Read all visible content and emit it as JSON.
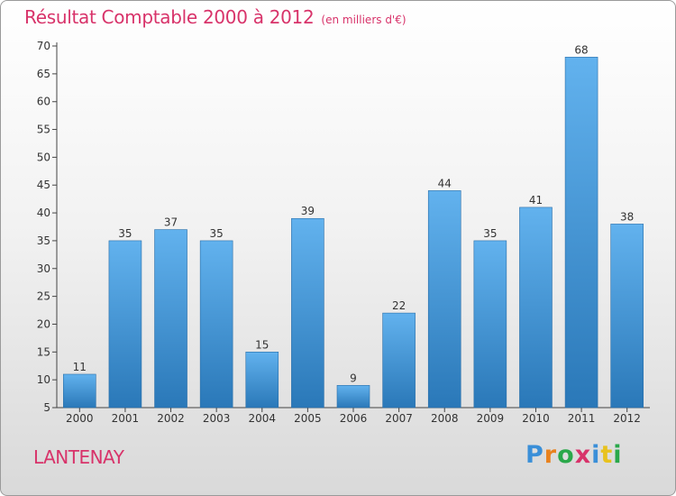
{
  "header": {
    "title": "Résultat Comptable 2000 à 2012",
    "subtitle": "(en milliers d'€)"
  },
  "footer": {
    "commune": "LANTENAY",
    "brand": "Proxiti",
    "brand_colors": [
      "#3a8fd8",
      "#e8821e",
      "#2aa84a",
      "#d8336a",
      "#3a8fd8",
      "#e8c21e",
      "#2aa84a"
    ]
  },
  "colors": {
    "title": "#d8336a",
    "bar_top": "#62b2ee",
    "bar_bottom": "#2a78b8",
    "axis": "#444444"
  },
  "chart_data": {
    "type": "bar",
    "title": "Résultat Comptable 2000 à 2012",
    "xlabel": "",
    "ylabel": "",
    "categories": [
      "2000",
      "2001",
      "2002",
      "2003",
      "2004",
      "2005",
      "2006",
      "2007",
      "2008",
      "2009",
      "2010",
      "2011",
      "2012"
    ],
    "values": [
      11,
      35,
      37,
      35,
      15,
      39,
      9,
      22,
      44,
      35,
      41,
      68,
      38
    ],
    "ylim": [
      5,
      70
    ],
    "yticks": [
      5,
      10,
      15,
      20,
      25,
      30,
      35,
      40,
      45,
      50,
      55,
      60,
      65,
      70
    ],
    "grid": false,
    "data_labels": true
  }
}
